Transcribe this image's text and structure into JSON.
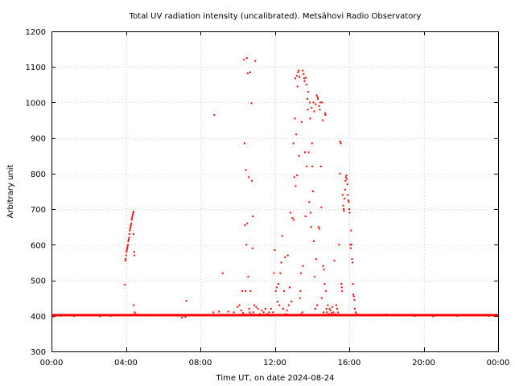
{
  "chart_data": {
    "type": "scatter",
    "title": "Total UV radiation intensity (uncalibrated). Metsähovi Radio Observatory",
    "xlabel": "Time UT, on date 2024-08-24",
    "ylabel": "Arbitrary unit",
    "xlim": [
      0,
      24
    ],
    "ylim": [
      300,
      1200
    ],
    "grid": true,
    "marker_color": "#ff0000",
    "x_ticks": [
      {
        "value": 0,
        "label": "00:00"
      },
      {
        "value": 4,
        "label": "04:00"
      },
      {
        "value": 8,
        "label": "08:00"
      },
      {
        "value": 12,
        "label": "12:00"
      },
      {
        "value": 16,
        "label": "16:00"
      },
      {
        "value": 20,
        "label": "20:00"
      },
      {
        "value": 24,
        "label": "00:00"
      }
    ],
    "y_ticks": [
      {
        "value": 300,
        "label": "300"
      },
      {
        "value": 400,
        "label": "400"
      },
      {
        "value": 500,
        "label": "500"
      },
      {
        "value": 600,
        "label": "600"
      },
      {
        "value": 700,
        "label": "700"
      },
      {
        "value": 800,
        "label": "800"
      },
      {
        "value": 900,
        "label": "900"
      },
      {
        "value": 1000,
        "label": "1000"
      },
      {
        "value": 1100,
        "label": "1100"
      },
      {
        "value": 1200,
        "label": "1200"
      }
    ],
    "baseline": {
      "value": 402,
      "x_start": 0.0,
      "x_end": 24.0
    },
    "series": [
      {
        "points": [
          [
            0.1,
            398
          ],
          [
            0.5,
            400
          ],
          [
            1.2,
            399
          ],
          [
            2.0,
            401
          ],
          [
            2.6,
            399
          ],
          [
            3.2,
            400
          ],
          [
            3.95,
            488
          ],
          [
            3.97,
            555
          ],
          [
            3.99,
            560
          ],
          [
            4.01,
            570
          ],
          [
            4.03,
            580
          ],
          [
            4.05,
            585
          ],
          [
            4.07,
            590
          ],
          [
            4.09,
            595
          ],
          [
            4.11,
            600
          ],
          [
            4.13,
            610
          ],
          [
            4.15,
            615
          ],
          [
            4.17,
            620
          ],
          [
            4.19,
            630
          ],
          [
            4.21,
            640
          ],
          [
            4.23,
            645
          ],
          [
            4.25,
            650
          ],
          [
            4.27,
            655
          ],
          [
            4.29,
            660
          ],
          [
            4.31,
            670
          ],
          [
            4.33,
            675
          ],
          [
            4.35,
            680
          ],
          [
            4.37,
            685
          ],
          [
            4.39,
            690
          ],
          [
            4.41,
            693
          ],
          [
            4.4,
            630
          ],
          [
            4.45,
            580
          ],
          [
            4.46,
            570
          ],
          [
            4.42,
            430
          ],
          [
            4.47,
            410
          ],
          [
            4.52,
            405
          ],
          [
            4.6,
            402
          ],
          [
            5.5,
            401
          ],
          [
            6.0,
            401
          ],
          [
            6.8,
            400
          ],
          [
            7.0,
            395
          ],
          [
            7.1,
            400
          ],
          [
            7.2,
            397
          ],
          [
            7.25,
            442
          ],
          [
            8.7,
            410
          ],
          [
            8.75,
            965
          ],
          [
            9.0,
            412
          ],
          [
            9.2,
            520
          ],
          [
            9.5,
            412
          ],
          [
            9.8,
            410
          ],
          [
            10.0,
            425
          ],
          [
            10.1,
            430
          ],
          [
            10.2,
            415
          ],
          [
            10.25,
            470
          ],
          [
            10.3,
            408
          ],
          [
            10.35,
            1120
          ],
          [
            10.38,
            885
          ],
          [
            10.4,
            655
          ],
          [
            10.42,
            470
          ],
          [
            10.45,
            810
          ],
          [
            10.48,
            600
          ],
          [
            10.5,
            1125
          ],
          [
            10.52,
            660
          ],
          [
            10.55,
            1082
          ],
          [
            10.57,
            510
          ],
          [
            10.6,
            790
          ],
          [
            10.62,
            420
          ],
          [
            10.65,
            410
          ],
          [
            10.68,
            1085
          ],
          [
            10.7,
            470
          ],
          [
            10.72,
            405
          ],
          [
            10.75,
            998
          ],
          [
            10.77,
            780
          ],
          [
            10.8,
            590
          ],
          [
            10.82,
            680
          ],
          [
            10.85,
            410
          ],
          [
            10.9,
            430
          ],
          [
            10.95,
            1117
          ],
          [
            11.0,
            425
          ],
          [
            11.1,
            420
          ],
          [
            11.2,
            405
          ],
          [
            11.3,
            415
          ],
          [
            11.4,
            410
          ],
          [
            11.5,
            420
          ],
          [
            11.6,
            405
          ],
          [
            11.7,
            410
          ],
          [
            11.8,
            420
          ],
          [
            11.9,
            410
          ],
          [
            11.95,
            520
          ],
          [
            12.0,
            585
          ],
          [
            12.05,
            470
          ],
          [
            12.1,
            480
          ],
          [
            12.15,
            440
          ],
          [
            12.2,
            490
          ],
          [
            12.25,
            430
          ],
          [
            12.3,
            520
          ],
          [
            12.35,
            550
          ],
          [
            12.4,
            625
          ],
          [
            12.45,
            420
          ],
          [
            12.5,
            470
          ],
          [
            12.55,
            565
          ],
          [
            12.6,
            405
          ],
          [
            12.65,
            415
          ],
          [
            12.7,
            570
          ],
          [
            12.75,
            430
          ],
          [
            12.8,
            480
          ],
          [
            12.85,
            690
          ],
          [
            12.9,
            440
          ],
          [
            12.95,
            675
          ],
          [
            13.0,
            885
          ],
          [
            13.02,
            670
          ],
          [
            13.05,
            790
          ],
          [
            13.08,
            955
          ],
          [
            13.1,
            1068
          ],
          [
            13.12,
            765
          ],
          [
            13.15,
            910
          ],
          [
            13.18,
            1075
          ],
          [
            13.2,
            795
          ],
          [
            13.22,
            1045
          ],
          [
            13.25,
            1085
          ],
          [
            13.28,
            1090
          ],
          [
            13.3,
            850
          ],
          [
            13.32,
            1072
          ],
          [
            13.35,
            450
          ],
          [
            13.38,
            470
          ],
          [
            13.4,
            520
          ],
          [
            13.42,
            405
          ],
          [
            13.45,
            945
          ],
          [
            13.48,
            410
          ],
          [
            13.5,
            1090
          ],
          [
            13.52,
            540
          ],
          [
            13.55,
            1080
          ],
          [
            13.58,
            1068
          ],
          [
            13.6,
            1060
          ],
          [
            13.62,
            860
          ],
          [
            13.65,
            680
          ],
          [
            13.68,
            1070
          ],
          [
            13.7,
            1050
          ],
          [
            13.72,
            820
          ],
          [
            13.75,
            1010
          ],
          [
            13.78,
            980
          ],
          [
            13.8,
            1030
          ],
          [
            13.82,
            860
          ],
          [
            13.85,
            720
          ],
          [
            13.88,
            1000
          ],
          [
            13.9,
            955
          ],
          [
            13.92,
            690
          ],
          [
            13.95,
            650
          ],
          [
            13.98,
            985
          ],
          [
            14.0,
            885
          ],
          [
            14.02,
            820
          ],
          [
            14.05,
            750
          ],
          [
            14.08,
            1000
          ],
          [
            14.1,
            610
          ],
          [
            14.12,
            975
          ],
          [
            14.15,
            510
          ],
          [
            14.18,
            420
          ],
          [
            14.2,
            995
          ],
          [
            14.22,
            560
          ],
          [
            14.25,
            1020
          ],
          [
            14.28,
            430
          ],
          [
            14.3,
            1015
          ],
          [
            14.32,
            1010
          ],
          [
            14.35,
            650
          ],
          [
            14.38,
            990
          ],
          [
            14.4,
            645
          ],
          [
            14.42,
            980
          ],
          [
            14.45,
            1000
          ],
          [
            14.48,
            820
          ],
          [
            14.5,
            705
          ],
          [
            14.52,
            450
          ],
          [
            14.55,
            1000
          ],
          [
            14.58,
            950
          ],
          [
            14.6,
            540
          ],
          [
            14.62,
            410
          ],
          [
            14.65,
            530
          ],
          [
            14.68,
            490
          ],
          [
            14.7,
            970
          ],
          [
            14.72,
            965
          ],
          [
            14.75,
            470
          ],
          [
            14.78,
            420
          ],
          [
            14.8,
            410
          ],
          [
            14.85,
            430
          ],
          [
            14.9,
            405
          ],
          [
            14.95,
            420
          ],
          [
            15.0,
            415
          ],
          [
            15.05,
            408
          ],
          [
            15.1,
            425
          ],
          [
            15.15,
            410
          ],
          [
            15.2,
            555
          ],
          [
            15.25,
            405
          ],
          [
            15.3,
            430
          ],
          [
            15.35,
            420
          ],
          [
            15.4,
            410
          ],
          [
            15.45,
            600
          ],
          [
            15.5,
            800
          ],
          [
            15.52,
            890
          ],
          [
            15.55,
            885
          ],
          [
            15.58,
            490
          ],
          [
            15.6,
            480
          ],
          [
            15.62,
            470
          ],
          [
            15.65,
            740
          ],
          [
            15.68,
            710
          ],
          [
            15.7,
            700
          ],
          [
            15.72,
            695
          ],
          [
            15.75,
            730
          ],
          [
            15.78,
            755
          ],
          [
            15.8,
            780
          ],
          [
            15.82,
            790
          ],
          [
            15.85,
            795
          ],
          [
            15.88,
            785
          ],
          [
            15.9,
            770
          ],
          [
            15.92,
            740
          ],
          [
            15.95,
            725
          ],
          [
            15.98,
            720
          ],
          [
            16.0,
            700
          ],
          [
            16.02,
            690
          ],
          [
            16.05,
            600
          ],
          [
            16.08,
            590
          ],
          [
            16.1,
            640
          ],
          [
            16.12,
            600
          ],
          [
            16.15,
            560
          ],
          [
            16.18,
            550
          ],
          [
            16.2,
            490
          ],
          [
            16.22,
            460
          ],
          [
            16.25,
            455
          ],
          [
            16.28,
            445
          ],
          [
            16.3,
            420
          ],
          [
            16.35,
            410
          ],
          [
            16.4,
            405
          ],
          [
            16.5,
            402
          ],
          [
            18.0,
            404
          ],
          [
            19.5,
            400
          ],
          [
            20.5,
            399
          ],
          [
            21.0,
            401
          ],
          [
            21.8,
            400
          ],
          [
            22.5,
            401
          ],
          [
            23.5,
            400
          ]
        ]
      }
    ]
  }
}
